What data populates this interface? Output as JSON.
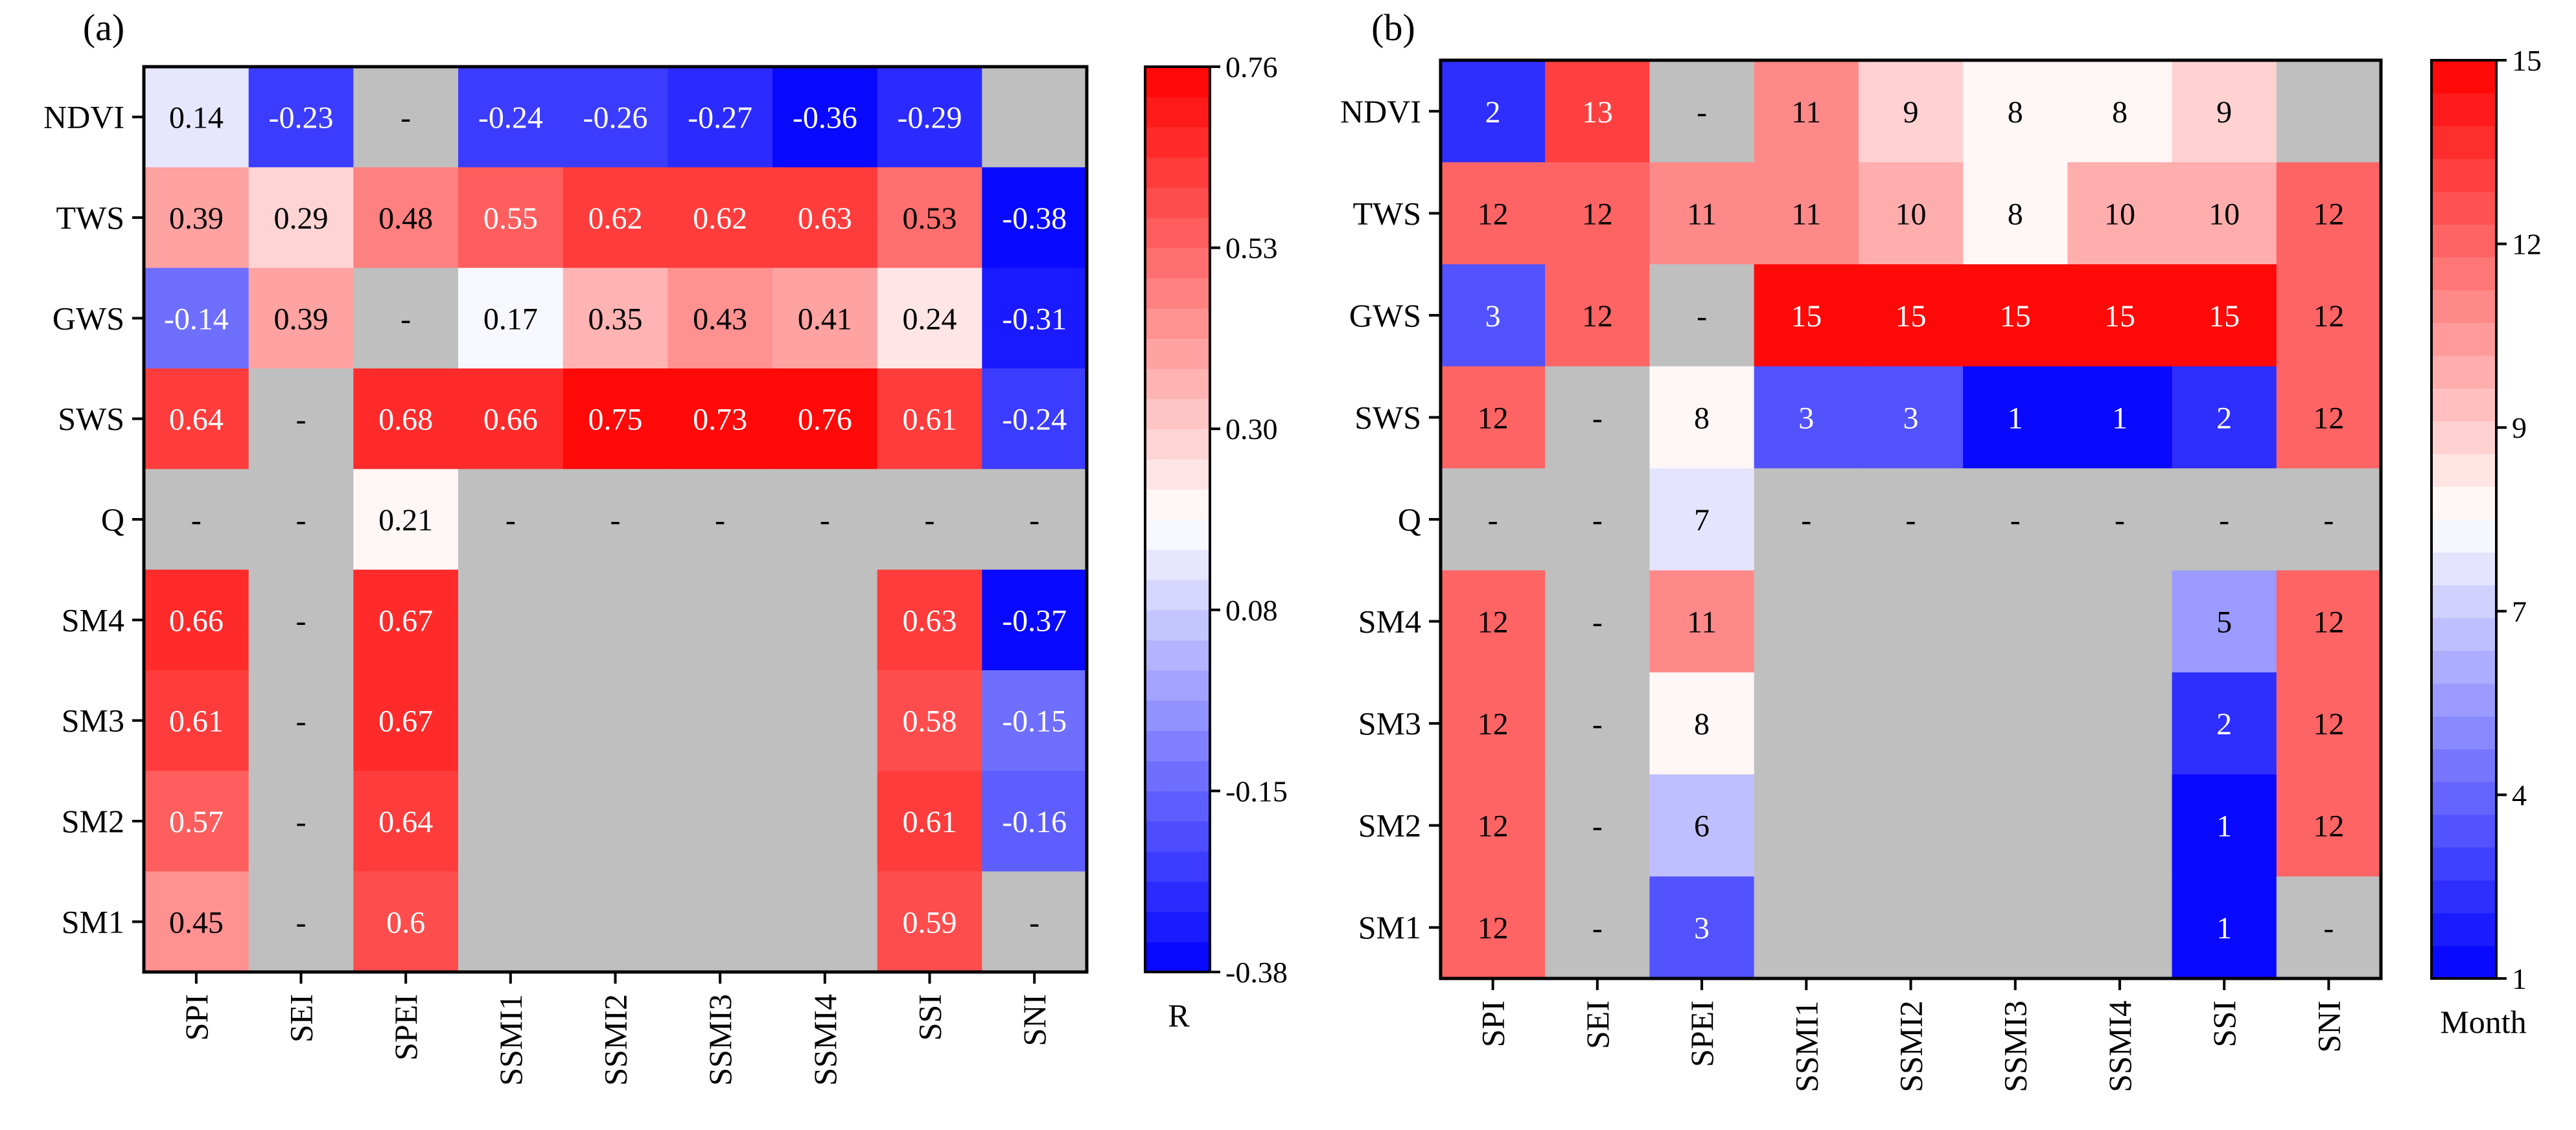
{
  "chart_data": [
    {
      "type": "heatmap",
      "panel_label": "(a)",
      "rows": [
        "NDVI",
        "TWS",
        "GWS",
        "SWS",
        "Q",
        "SM4",
        "SM3",
        "SM2",
        "SM1"
      ],
      "columns": [
        "SPI",
        "SEI",
        "SPEI",
        "SSMI1",
        "SSMI2",
        "SSMI3",
        "SSMI4",
        "SSI",
        "SNI"
      ],
      "cells": [
        [
          "0.14",
          "-0.23",
          "-",
          "-0.24",
          "-0.26",
          "-0.27",
          "-0.36",
          "-0.29",
          ""
        ],
        [
          "0.39",
          "0.29",
          "0.48",
          "0.55",
          "0.62",
          "0.62",
          "0.63",
          "0.53",
          "-0.38"
        ],
        [
          "-0.14",
          "0.39",
          "-",
          "0.17",
          "0.35",
          "0.43",
          "0.41",
          "0.24",
          "-0.31"
        ],
        [
          "0.64",
          "-",
          "0.68",
          "0.66",
          "0.75",
          "0.73",
          "0.76",
          "0.61",
          "-0.24"
        ],
        [
          "-",
          "-",
          "0.21",
          "-",
          "-",
          "-",
          "-",
          "-",
          "-"
        ],
        [
          "0.66",
          "-",
          "0.67",
          "",
          "",
          "",
          "",
          "0.63",
          "-0.37"
        ],
        [
          "0.61",
          "-",
          "0.67",
          "",
          "",
          "",
          "",
          "0.58",
          "-0.15"
        ],
        [
          "0.57",
          "-",
          "0.64",
          "",
          "",
          "",
          "",
          "0.61",
          "-0.16"
        ],
        [
          "0.45",
          "-",
          "0.6",
          "",
          "",
          "",
          "",
          "0.59",
          "-"
        ]
      ],
      "colorbar": {
        "min": -0.38,
        "max": 0.76,
        "levels": 30,
        "ticks": [
          "0.76",
          "0.53",
          "0.30",
          "0.08",
          "-0.15",
          "-0.38"
        ],
        "label": "R",
        "low_color": "#0000ff",
        "mid_color": "#ffffff",
        "high_color": "#ff0000"
      },
      "missing_color": "#bfbfbf"
    },
    {
      "type": "heatmap",
      "panel_label": "(b)",
      "rows": [
        "NDVI",
        "TWS",
        "GWS",
        "SWS",
        "Q",
        "SM4",
        "SM3",
        "SM2",
        "SM1"
      ],
      "columns": [
        "SPI",
        "SEI",
        "SPEI",
        "SSMI1",
        "SSMI2",
        "SSMI3",
        "SSMI4",
        "SSI",
        "SNI"
      ],
      "cells": [
        [
          "2",
          "13",
          "-",
          "11",
          "9",
          "8",
          "8",
          "9",
          ""
        ],
        [
          "12",
          "12",
          "11",
          "11",
          "10",
          "8",
          "10",
          "10",
          "12"
        ],
        [
          "3",
          "12",
          "-",
          "15",
          "15",
          "15",
          "15",
          "15",
          "12"
        ],
        [
          "12",
          "-",
          "8",
          "3",
          "3",
          "1",
          "1",
          "2",
          "12"
        ],
        [
          "-",
          "-",
          "7",
          "-",
          "-",
          "-",
          "-",
          "-",
          "-"
        ],
        [
          "12",
          "-",
          "11",
          "",
          "",
          "",
          "",
          "5",
          "12"
        ],
        [
          "12",
          "-",
          "8",
          "",
          "",
          "",
          "",
          "2",
          "12"
        ],
        [
          "12",
          "-",
          "6",
          "",
          "",
          "",
          "",
          "1",
          "12"
        ],
        [
          "12",
          "-",
          "3",
          "",
          "",
          "",
          "",
          "1",
          "-"
        ]
      ],
      "colorbar": {
        "min": 1,
        "max": 15,
        "levels": 28,
        "ticks": [
          "15",
          "12",
          "9",
          "7",
          "4",
          "1"
        ],
        "label": "Month",
        "low_color": "#0000ff",
        "mid_color": "#ffffff",
        "high_color": "#ff0000"
      },
      "missing_color": "#bfbfbf"
    }
  ]
}
